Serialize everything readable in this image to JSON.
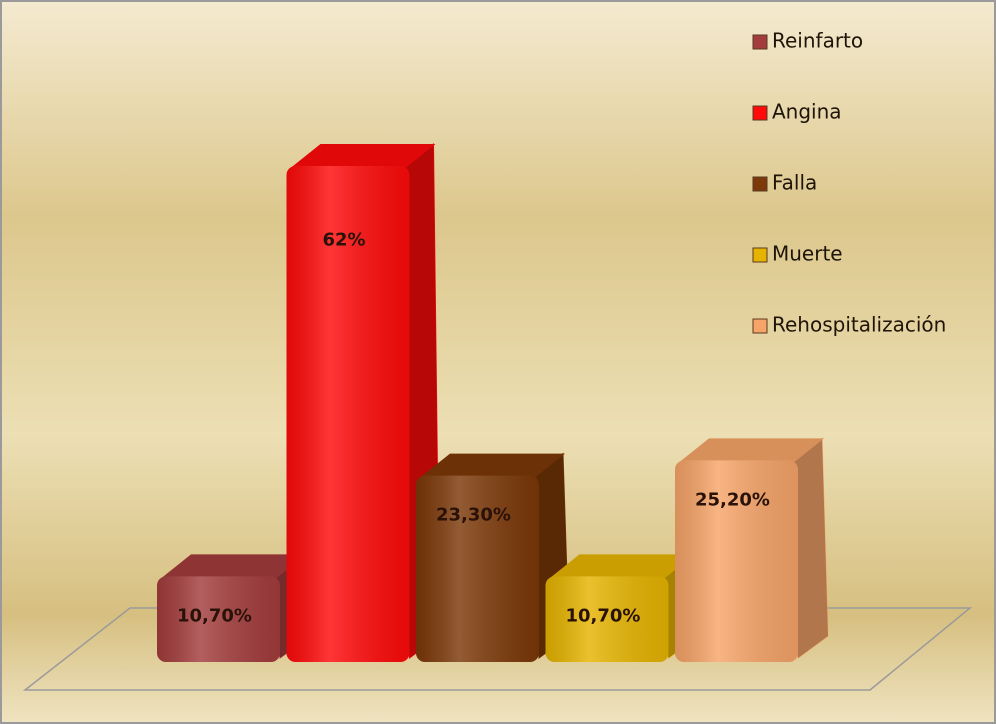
{
  "chart_data": {
    "type": "bar",
    "series": [
      {
        "name": "Reinfarto",
        "color": "#a33c3c",
        "values": [
          10.7
        ],
        "value_labels": [
          "10,70%"
        ]
      },
      {
        "name": "Angina",
        "color": "#ff0a0a",
        "values": [
          62
        ],
        "value_labels": [
          "62%"
        ]
      },
      {
        "name": "Falla",
        "color": "#7c3808",
        "values": [
          23.3
        ],
        "value_labels": [
          "23,30%"
        ]
      },
      {
        "name": "Muerte",
        "color": "#e6b400",
        "values": [
          10.7
        ],
        "value_labels": [
          "10,70%"
        ]
      },
      {
        "name": "Rehospitalización",
        "color": "#f6a468",
        "values": [
          25.2
        ],
        "value_labels": [
          "25,20%"
        ]
      }
    ]
  }
}
